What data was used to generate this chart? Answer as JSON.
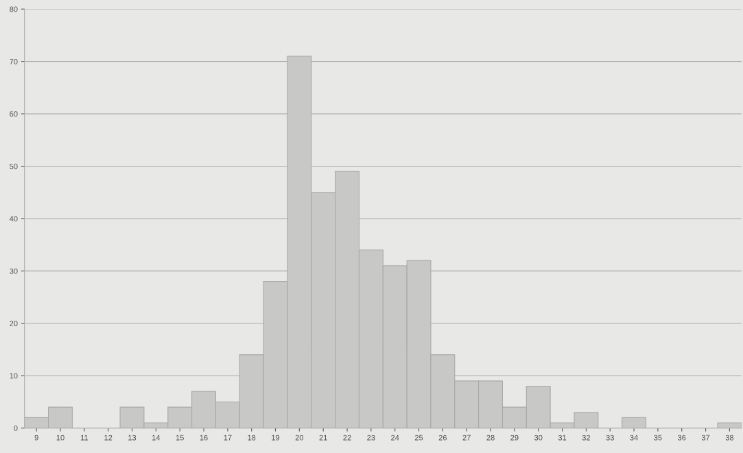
{
  "chart_data": {
    "type": "bar",
    "categories": [
      "9",
      "10",
      "11",
      "12",
      "13",
      "14",
      "15",
      "16",
      "17",
      "18",
      "19",
      "20",
      "21",
      "22",
      "23",
      "24",
      "25",
      "26",
      "27",
      "28",
      "29",
      "30",
      "31",
      "32",
      "33",
      "34",
      "35",
      "36",
      "37",
      "38"
    ],
    "values": [
      2,
      4,
      0,
      0,
      4,
      1,
      4,
      7,
      5,
      14,
      28,
      71,
      45,
      49,
      34,
      31,
      32,
      14,
      9,
      9,
      4,
      8,
      1,
      3,
      0,
      2,
      0,
      0,
      0,
      1
    ],
    "color": "#c8c8c6",
    "ylim": [
      0,
      80
    ],
    "yticks": [
      0,
      10,
      20,
      30,
      40,
      50,
      60,
      70,
      80
    ],
    "grid": "y"
  }
}
